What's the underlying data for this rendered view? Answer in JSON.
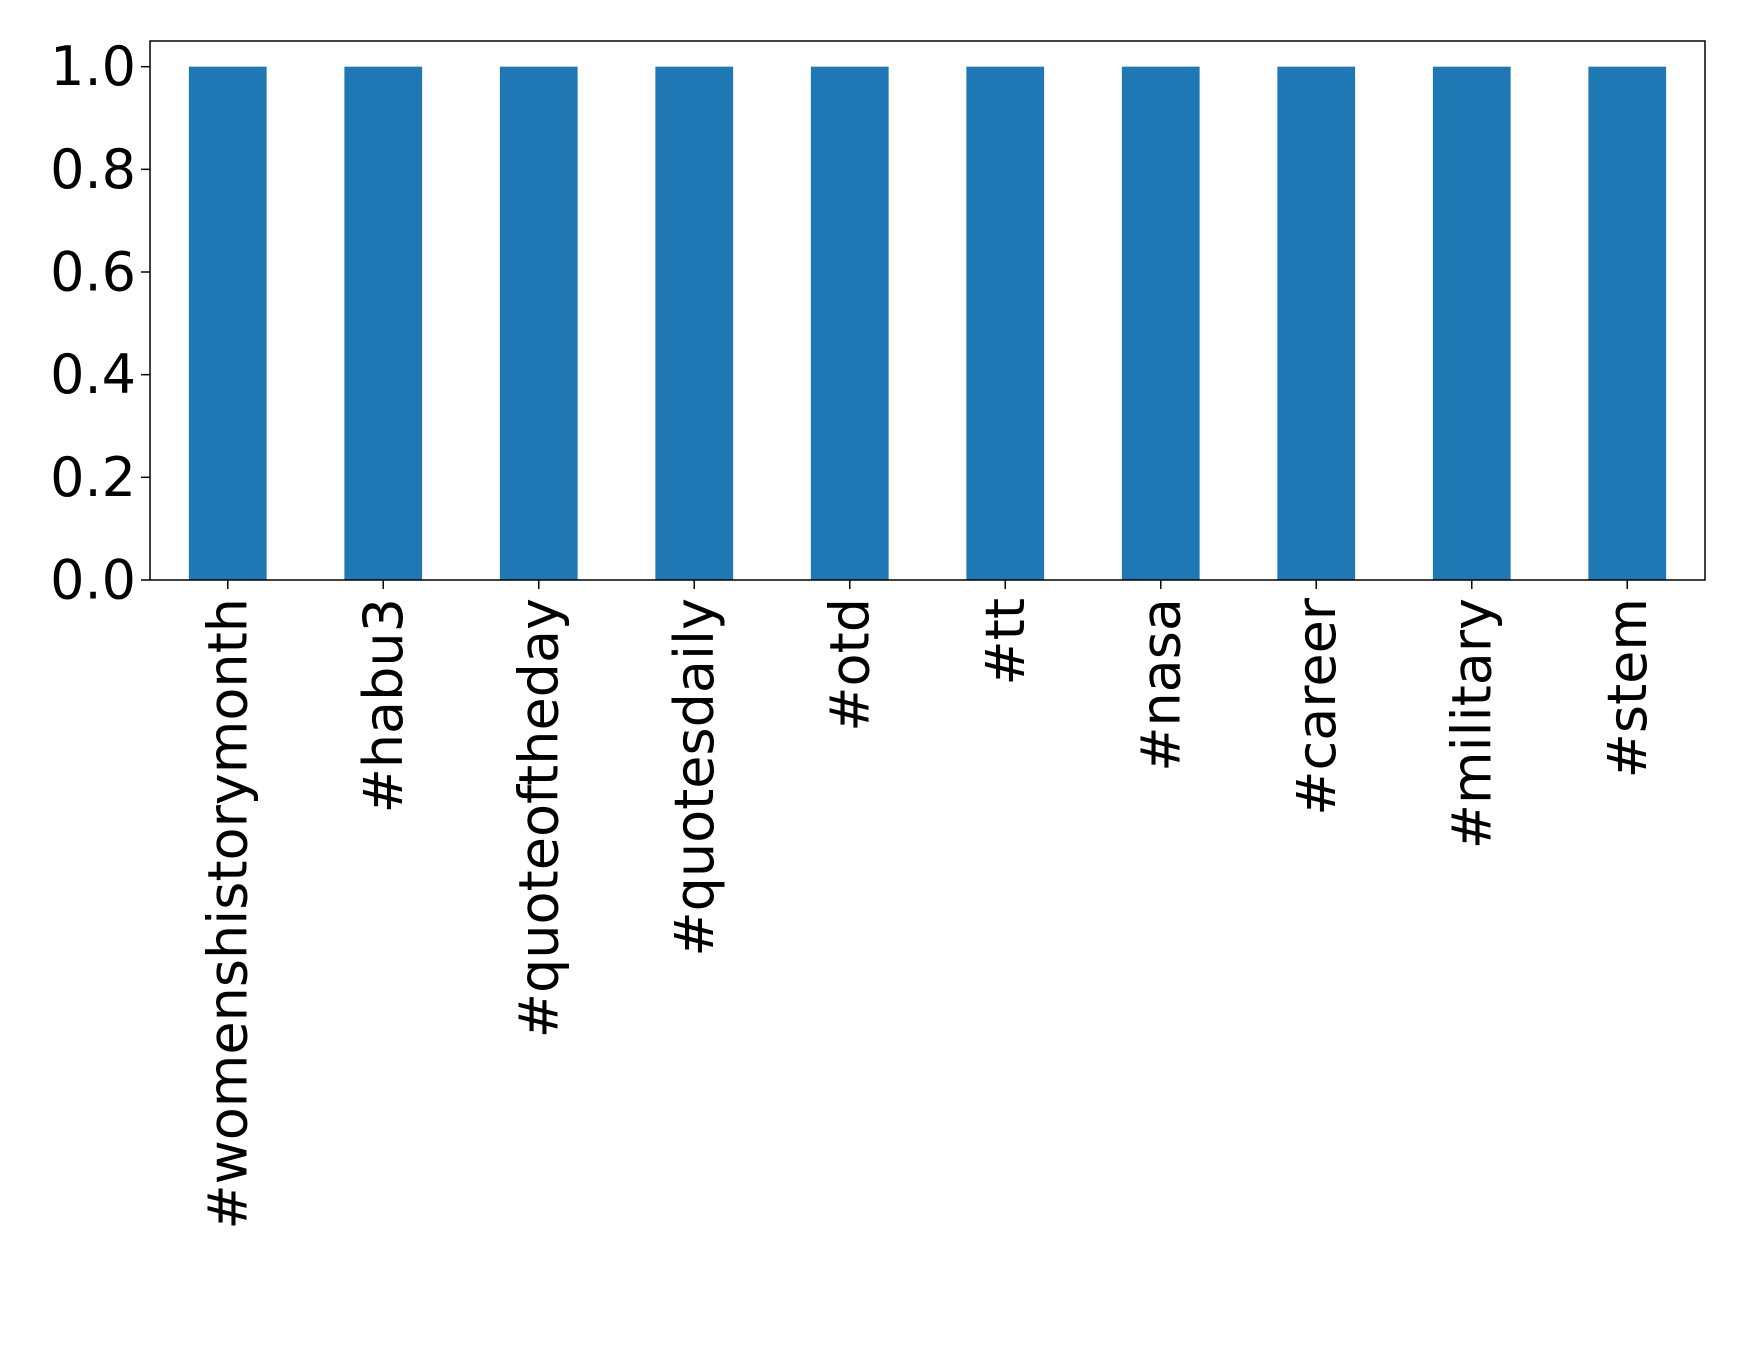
{
  "chart_data": {
    "type": "bar",
    "title": "",
    "xlabel": "",
    "ylabel": "",
    "categories": [
      "#womenshistorymonth",
      "#habu3",
      "#quoteoftheday",
      "#quotesdaily",
      "#otd",
      "#tt",
      "#nasa",
      "#career",
      "#military",
      "#stem"
    ],
    "values": [
      1.0,
      1.0,
      1.0,
      1.0,
      1.0,
      1.0,
      1.0,
      1.0,
      1.0,
      1.0
    ],
    "ylim": [
      0,
      1.05
    ],
    "yticks": [
      "0.0",
      "0.2",
      "0.4",
      "0.6",
      "0.8",
      "1.0"
    ],
    "ytick_values": [
      0.0,
      0.2,
      0.4,
      0.6,
      0.8,
      1.0
    ],
    "grid": false,
    "legend": "none",
    "bar_color": "#1f77b4",
    "x_tick_rotation": "vertical"
  }
}
